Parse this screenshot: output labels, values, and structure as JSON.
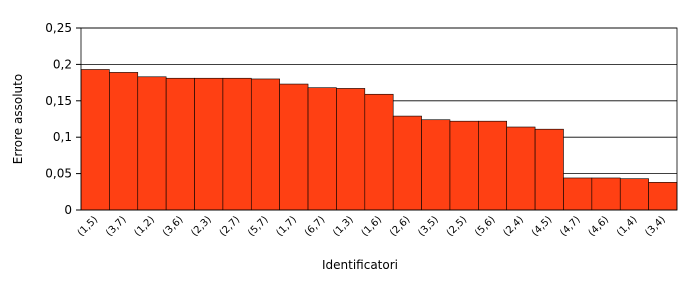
{
  "chart_data": {
    "type": "bar",
    "xlabel": "Identificatori",
    "ylabel": "Errore assoluto",
    "categories": [
      "(1,5)",
      "(3,7)",
      "(1,2)",
      "(3,6)",
      "(2,3)",
      "(2,7)",
      "(5,7)",
      "(1,7)",
      "(6,7)",
      "(1,3)",
      "(1,6)",
      "(2,6)",
      "(3,5)",
      "(2,5)",
      "(5,6)",
      "(2,4)",
      "(4,5)",
      "(4,7)",
      "(4,6)",
      "(1,4)",
      "(3,4)"
    ],
    "values": [
      0.193,
      0.189,
      0.183,
      0.181,
      0.181,
      0.181,
      0.18,
      0.173,
      0.168,
      0.167,
      0.159,
      0.129,
      0.124,
      0.122,
      0.122,
      0.114,
      0.111,
      0.044,
      0.044,
      0.043,
      0.038
    ],
    "color": "#ff4013",
    "ylim": [
      0,
      0.25
    ],
    "yticks": [
      0,
      {
        "value": 0.05,
        "label": "0,05"
      },
      {
        "value": 0.1,
        "label": "0,1"
      },
      {
        "value": 0.15,
        "label": "0,15"
      },
      {
        "value": 0.2,
        "label": "0,2"
      },
      {
        "value": 0.25,
        "label": "0,25"
      }
    ],
    "grid": true
  }
}
